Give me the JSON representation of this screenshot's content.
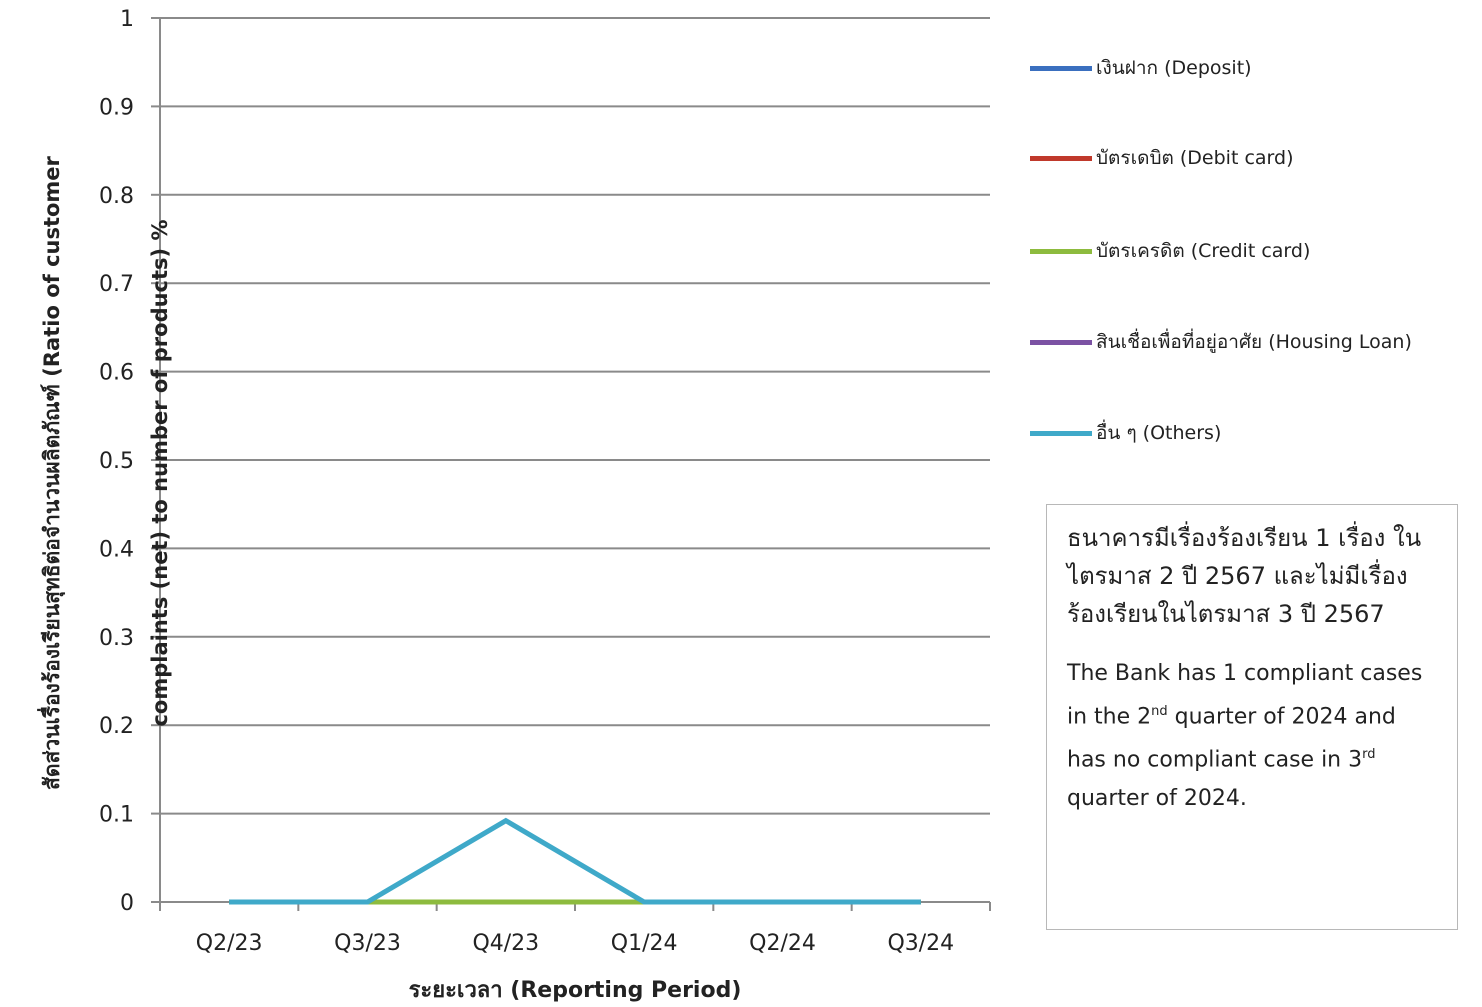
{
  "chart_data": {
    "type": "line",
    "ylabel_line1": "สัดส่วนเรื่องร้องเรียนสุทธิต่อจำนวนผลิตภัณฑ์  (Ratio of customer",
    "ylabel_line2": "complaints  (net) to number of products) %",
    "xlabel": "ระยะเวลา  (Reporting Period)",
    "ylim": [
      0,
      1
    ],
    "yticks": [
      "0",
      "0.1",
      "0.2",
      "0.3",
      "0.4",
      "0.5",
      "0.6",
      "0.7",
      "0.8",
      "0.9",
      "1"
    ],
    "categories": [
      "Q2/23",
      "Q3/23",
      "Q4/23",
      "Q1/24",
      "Q2/24",
      "Q3/24"
    ],
    "grid": true,
    "legend_position": "right",
    "series": [
      {
        "name": "เงินฝาก  (Deposit)",
        "color": "#3a6fbf",
        "values": [
          0,
          0,
          0,
          0,
          0,
          0
        ]
      },
      {
        "name": "บัตรเดบิต (Debit card)",
        "color": "#c0392b",
        "values": [
          0,
          0,
          0,
          0,
          0,
          0
        ]
      },
      {
        "name": "บัตรเครดิต (Credit card)",
        "color": "#8dbb3e",
        "values": [
          0,
          0,
          0,
          0,
          0,
          0
        ]
      },
      {
        "name": "สินเชื่อเพื่อที่อยู่อาศัย  (Housing Loan)",
        "color": "#7b52a3",
        "values": [
          0,
          0,
          0,
          0,
          0,
          0
        ]
      },
      {
        "name": "อื่น ๆ (Others)",
        "color": "#3fa9c9",
        "values": [
          0,
          0,
          0.092,
          0,
          0,
          0
        ]
      }
    ]
  },
  "note": {
    "thai": "ธนาคารมีเรื่องร้องเรียน 1 เรื่อง ในไตรมาส 2 ปี 2567 และไม่มีเรื่องร้องเรียนในไตรมาส 3 ปี 2567",
    "en_1": "The Bank has  1 compliant cases in  the 2",
    "en_sup1": "nd",
    "en_2": " quarter of 2024 and has no compliant case  in 3",
    "en_sup2": "rd",
    "en_3": " quarter of 2024."
  }
}
